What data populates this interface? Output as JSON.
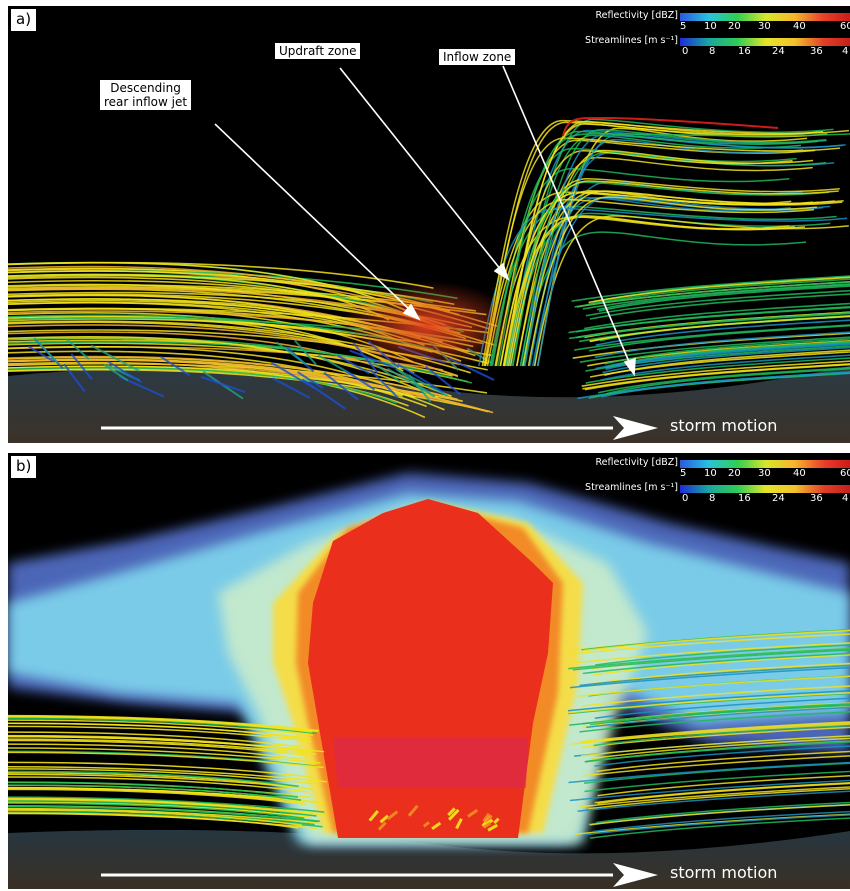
{
  "panels": [
    {
      "label": "a)",
      "callouts": [
        "Descending\nrear inflow jet",
        "Updraft zone",
        "Inflow zone"
      ],
      "motion_label": "storm motion"
    },
    {
      "label": "b)",
      "motion_label": "storm motion"
    }
  ],
  "legend": {
    "reflectivity_title": "Reflectivity [dBZ]",
    "reflectivity_ticks": [
      "5",
      "10",
      "20",
      "30",
      "40",
      "60"
    ],
    "streamline_title": "Streamlines [m s⁻¹]",
    "streamline_ticks": [
      "0",
      "8",
      "16",
      "24",
      "36",
      "4"
    ]
  },
  "colors": {
    "background": "#000000",
    "low_speed": "#1a4fd8",
    "mid_speed": "#1fb85a",
    "high_speed": "#f2e21c",
    "max_speed": "#d81e1e",
    "reflectivity_core": "#e8321c"
  }
}
